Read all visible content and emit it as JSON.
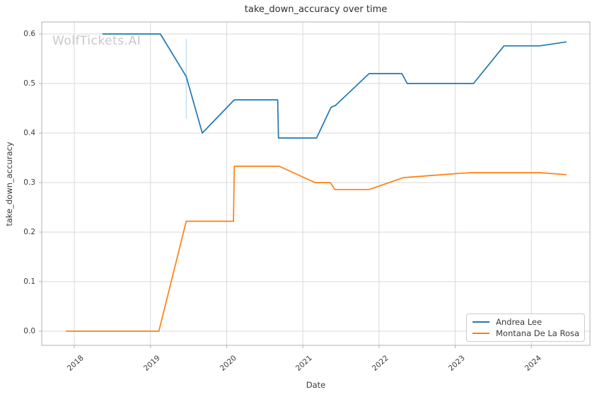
{
  "chart_data": {
    "type": "line",
    "title": "take_down_accuracy over time",
    "xlabel": "Date",
    "ylabel": "take_down_accuracy",
    "watermark": "WolfTickets.AI",
    "grid": true,
    "legend_position": "lower right",
    "xlim": [
      2017.573,
      2024.768
    ],
    "ylim": [
      -0.0286,
      0.6243
    ],
    "x_ticks": [
      2018,
      2019,
      2020,
      2021,
      2022,
      2023,
      2024
    ],
    "x_tick_labels": [
      "2018",
      "2019",
      "2020",
      "2021",
      "2022",
      "2023",
      "2024"
    ],
    "y_ticks": [
      0.0,
      0.1,
      0.2,
      0.3,
      0.4,
      0.5,
      0.6
    ],
    "y_tick_labels": [
      "0.0",
      "0.1",
      "0.2",
      "0.3",
      "0.4",
      "0.5",
      "0.6"
    ],
    "series": [
      {
        "name": "Andrea Lee",
        "color": "#1f77b4",
        "points": [
          [
            2018.37,
            0.6
          ],
          [
            2019.13,
            0.6
          ],
          [
            2019.47,
            0.514
          ],
          [
            2019.68,
            0.4
          ],
          [
            2020.1,
            0.467
          ],
          [
            2020.67,
            0.467
          ],
          [
            2020.68,
            0.39
          ],
          [
            2021.18,
            0.39
          ],
          [
            2021.37,
            0.452
          ],
          [
            2021.43,
            0.456
          ],
          [
            2021.87,
            0.52
          ],
          [
            2022.3,
            0.52
          ],
          [
            2022.37,
            0.5
          ],
          [
            2023.24,
            0.5
          ],
          [
            2023.64,
            0.576
          ],
          [
            2024.11,
            0.576
          ],
          [
            2024.46,
            0.584
          ]
        ]
      },
      {
        "name": "Montana De La Rosa",
        "color": "#ff7f0e",
        "points": [
          [
            2017.89,
            0.0
          ],
          [
            2019.11,
            0.0
          ],
          [
            2019.47,
            0.222
          ],
          [
            2020.09,
            0.222
          ],
          [
            2020.1,
            0.333
          ],
          [
            2020.69,
            0.333
          ],
          [
            2021.16,
            0.3
          ],
          [
            2021.36,
            0.3
          ],
          [
            2021.42,
            0.286
          ],
          [
            2021.87,
            0.286
          ],
          [
            2022.32,
            0.31
          ],
          [
            2023.09,
            0.319
          ],
          [
            2023.24,
            0.32
          ],
          [
            2024.11,
            0.32
          ],
          [
            2024.46,
            0.316
          ]
        ]
      }
    ],
    "annotations": [
      {
        "type": "vline",
        "x": 2019.47,
        "y_from": 0.429,
        "y_to": 0.59,
        "color": "#bcd8ec"
      }
    ],
    "colors": {
      "grid": "#d9d9d9",
      "spine": "#b0b0b0",
      "tick": "#b0b0b0",
      "tick_text": "#3b3b3b",
      "title_text": "#2f2f2f",
      "watermark_text": "#c8c8c8",
      "background": "#ffffff"
    }
  }
}
